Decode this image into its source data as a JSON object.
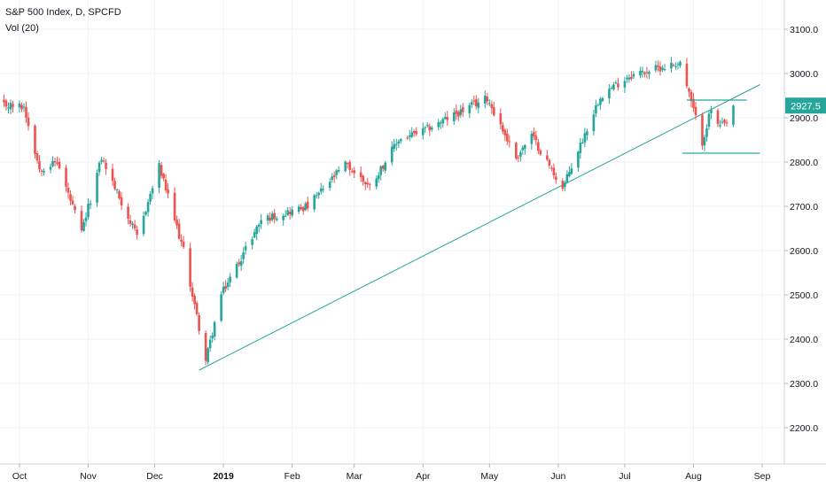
{
  "header": {
    "title": "S&P 500 Index, D, SPCFD",
    "indicator": "Vol (20)"
  },
  "colors": {
    "up": "#26a69a",
    "down": "#ef5350",
    "trendline": "#26a69a",
    "grid": "#f0f3fa",
    "axis_border": "#d1d4dc",
    "price_tag": "#26a69a"
  },
  "chart_data": {
    "type": "candlestick",
    "title": "S&P 500 Index, D, SPCFD",
    "indicator": "Vol (20)",
    "y_ticks": [
      2200,
      2300,
      2400,
      2500,
      2600,
      2700,
      2800,
      2900,
      3000,
      3100
    ],
    "y_tick_labels": [
      "2200.0",
      "2300.0",
      "2400.0",
      "2500.0",
      "2600.0",
      "2700.0",
      "2800.0",
      "2900.0",
      "3000.0",
      "3100.0"
    ],
    "ylim": [
      2125,
      3210
    ],
    "x_labels": [
      "Oct",
      "Nov",
      "Dec",
      "2019",
      "Feb",
      "Mar",
      "Apr",
      "May",
      "Jun",
      "Jul",
      "Aug",
      "Sep"
    ],
    "x_label_dates": [
      "2018-10-01",
      "2018-11-01",
      "2018-12-01",
      "2019-01-01",
      "2019-02-01",
      "2019-03-01",
      "2019-04-01",
      "2019-05-01",
      "2019-06-01",
      "2019-07-01",
      "2019-08-01",
      "2019-09-01"
    ],
    "last_price": "2927.5",
    "grid": true,
    "close_path": [
      [
        "2018-09-20",
        2930
      ],
      [
        "2018-10-03",
        2925
      ],
      [
        "2018-10-10",
        2785
      ],
      [
        "2018-10-18",
        2800
      ],
      [
        "2018-10-29",
        2640
      ],
      [
        "2018-11-07",
        2810
      ],
      [
        "2018-11-23",
        2630
      ],
      [
        "2018-12-03",
        2790
      ],
      [
        "2018-12-14",
        2600
      ],
      [
        "2018-12-24",
        2351
      ],
      [
        "2018-12-31",
        2500
      ],
      [
        "2019-01-18",
        2670
      ],
      [
        "2019-02-08",
        2700
      ],
      [
        "2019-02-25",
        2795
      ],
      [
        "2019-03-08",
        2745
      ],
      [
        "2019-03-21",
        2850
      ],
      [
        "2019-04-01",
        2870
      ],
      [
        "2019-04-30",
        2945
      ],
      [
        "2019-05-13",
        2810
      ],
      [
        "2019-05-20",
        2860
      ],
      [
        "2019-06-03",
        2740
      ],
      [
        "2019-06-20",
        2950
      ],
      [
        "2019-07-03",
        2995
      ],
      [
        "2019-07-26",
        3025
      ],
      [
        "2019-08-05",
        2845
      ],
      [
        "2019-08-09",
        2920
      ],
      [
        "2019-08-12",
        2880
      ],
      [
        "2019-08-16",
        2885
      ],
      [
        "2019-08-19",
        2927.5
      ]
    ],
    "annotations": [
      {
        "type": "trendline",
        "from": [
          "2018-12-21",
          2330
        ],
        "to": [
          "2019-08-31",
          2975
        ]
      },
      {
        "type": "horizontal",
        "from": [
          "2019-07-29",
          2940
        ],
        "to": [
          "2019-08-25",
          2940
        ]
      },
      {
        "type": "horizontal",
        "from": [
          "2019-07-27",
          2820
        ],
        "to": [
          "2019-08-31",
          2820
        ]
      }
    ]
  }
}
